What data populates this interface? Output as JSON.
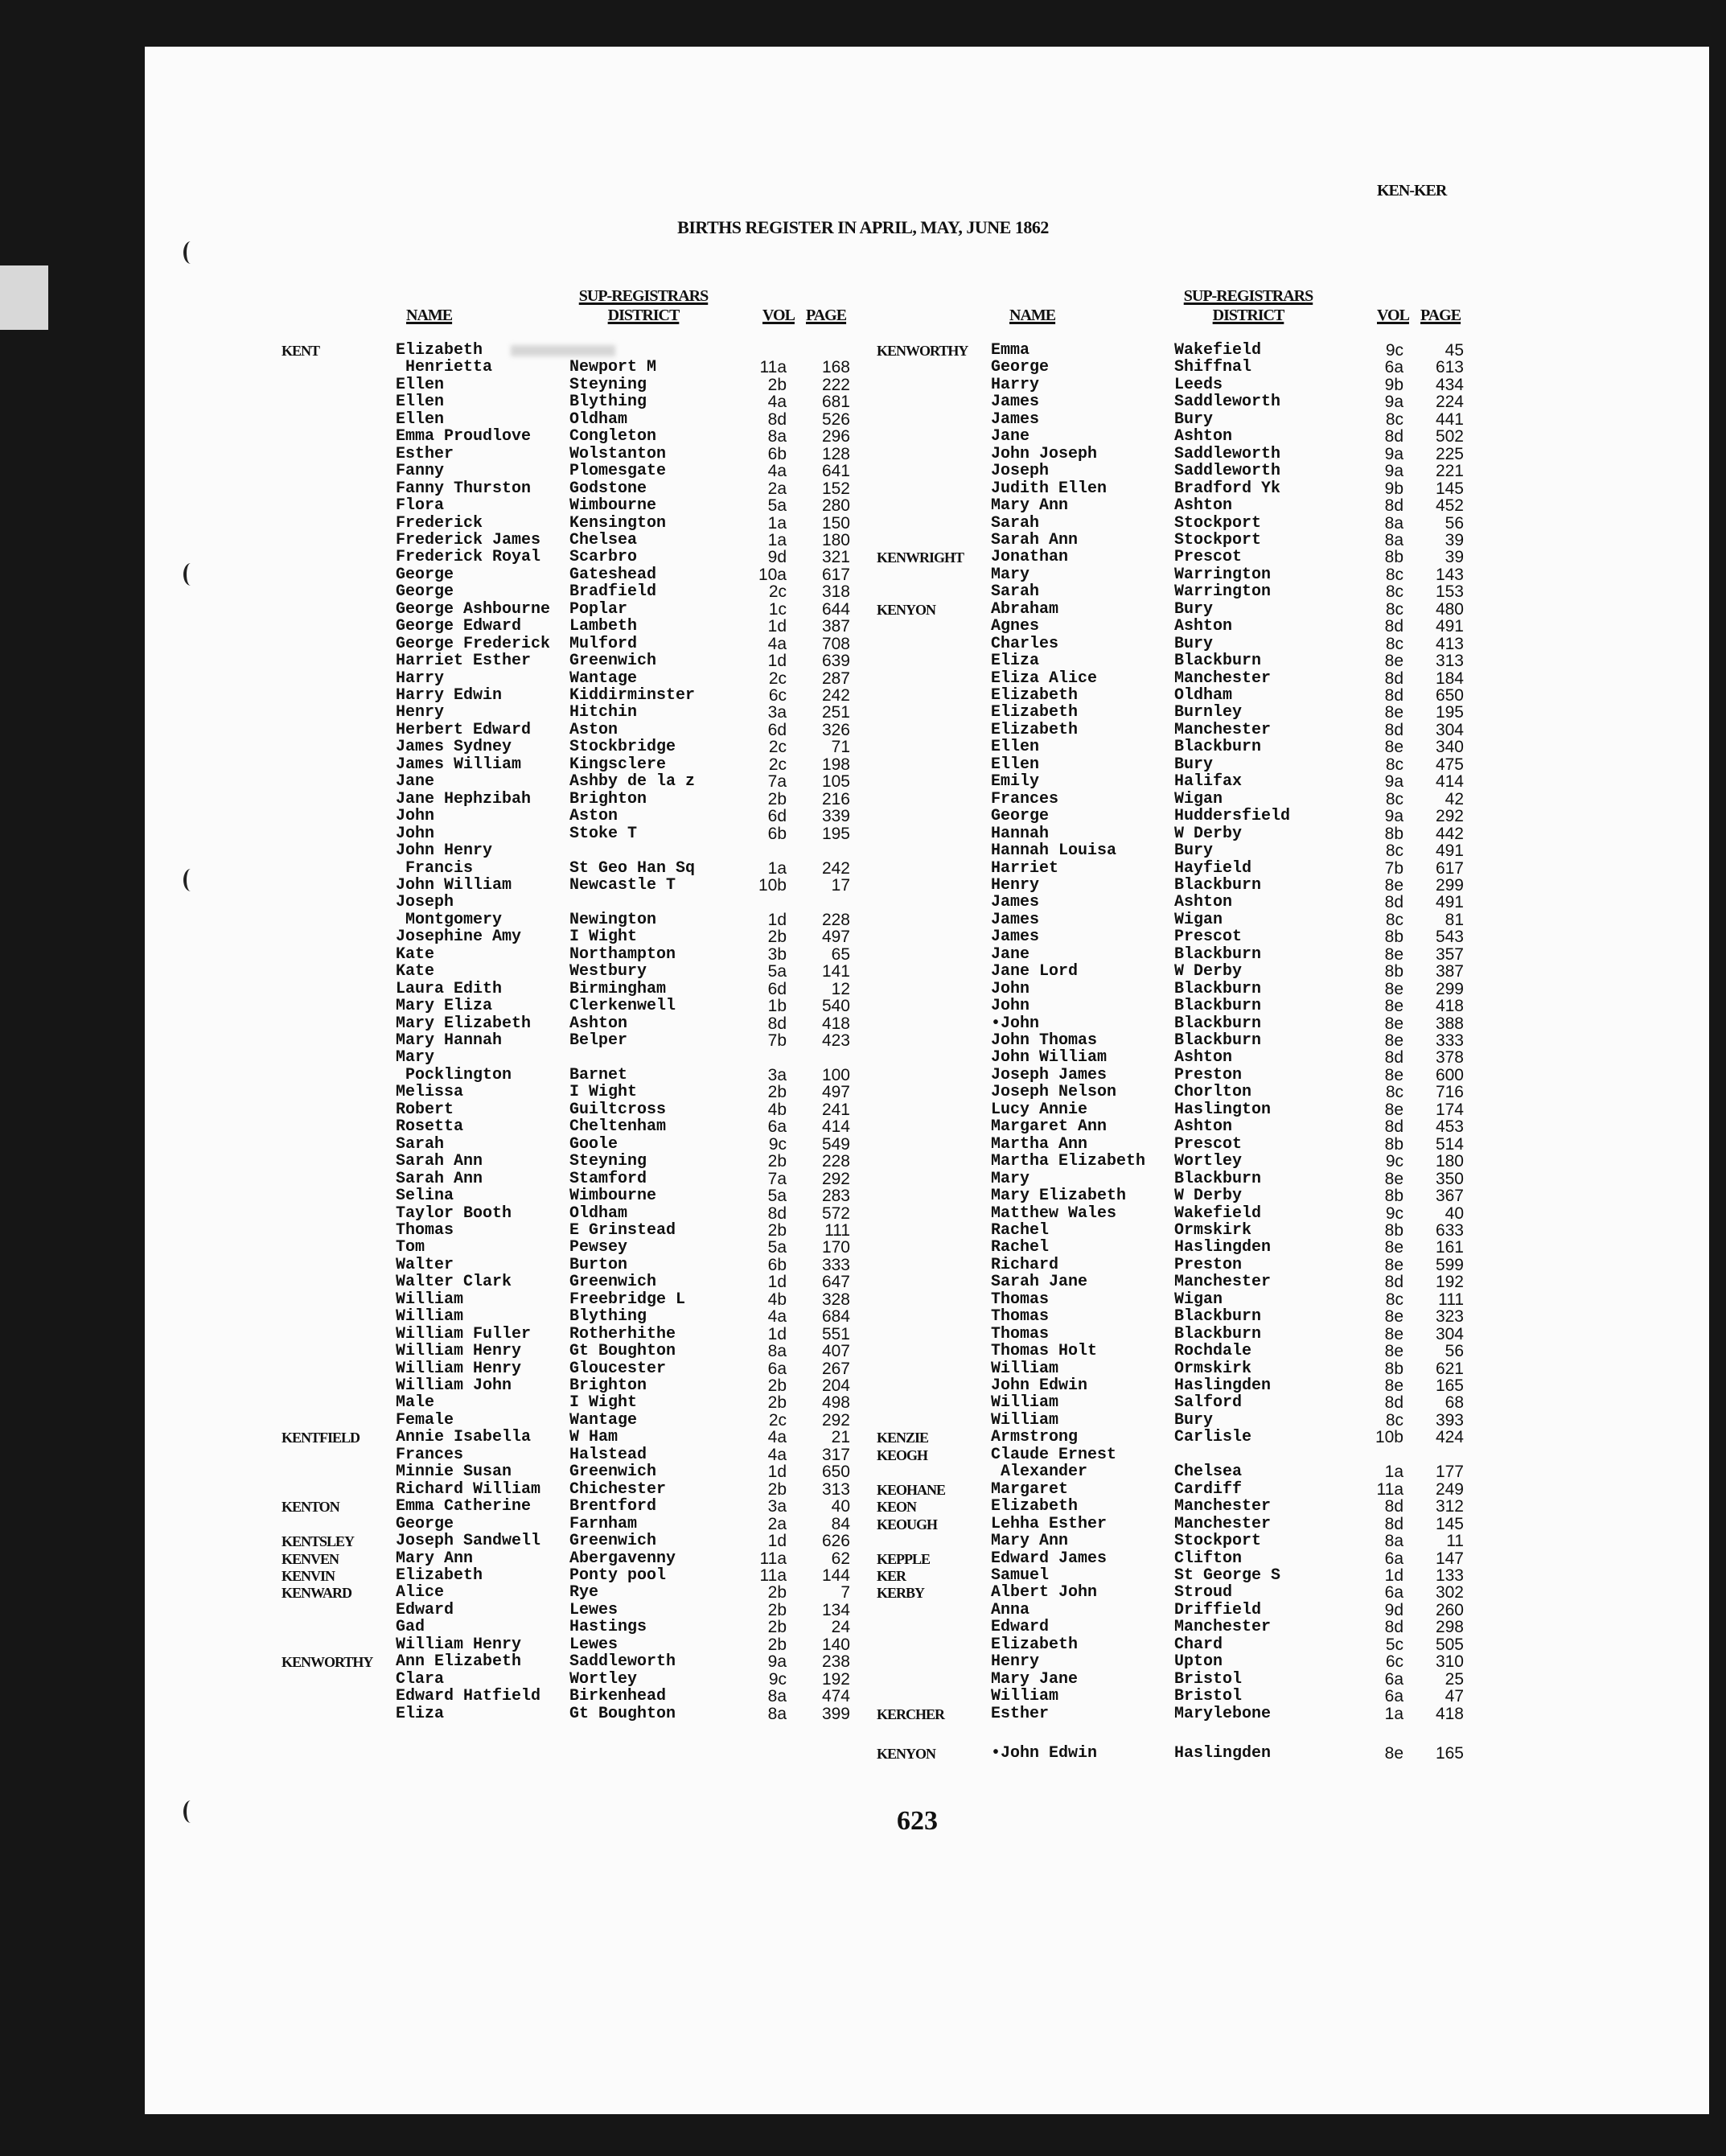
{
  "header": {
    "range": "KEN-KER",
    "title": "BIRTHS REGISTER IN APRIL, MAY, JUNE 1862"
  },
  "columns": {
    "name": "NAME",
    "district_top": "SUP-REGISTRARS",
    "district_bottom": "DISTRICT",
    "vol": "VOL",
    "page": "PAGE"
  },
  "page_number": "623",
  "left_rows": [
    {
      "s": "KENT",
      "n": "Elizabeth",
      "d": "",
      "v": "",
      "p": ""
    },
    {
      "s": "",
      "n": " Henrietta",
      "d": "Newport M",
      "v": "11a",
      "p": "168"
    },
    {
      "s": "",
      "n": "Ellen",
      "d": "Steyning",
      "v": "2b",
      "p": "222"
    },
    {
      "s": "",
      "n": "Ellen",
      "d": "Blything",
      "v": "4a",
      "p": "681"
    },
    {
      "s": "",
      "n": "Ellen",
      "d": "Oldham",
      "v": "8d",
      "p": "526"
    },
    {
      "s": "",
      "n": "Emma Proudlove",
      "d": "Congleton",
      "v": "8a",
      "p": "296"
    },
    {
      "s": "",
      "n": "Esther",
      "d": "Wolstanton",
      "v": "6b",
      "p": "128"
    },
    {
      "s": "",
      "n": "Fanny",
      "d": "Plomesgate",
      "v": "4a",
      "p": "641"
    },
    {
      "s": "",
      "n": "Fanny Thurston",
      "d": "Godstone",
      "v": "2a",
      "p": "152"
    },
    {
      "s": "",
      "n": "Flora",
      "d": "Wimbourne",
      "v": "5a",
      "p": "280"
    },
    {
      "s": "",
      "n": "Frederick",
      "d": "Kensington",
      "v": "1a",
      "p": "150"
    },
    {
      "s": "",
      "n": "Frederick James",
      "d": "Chelsea",
      "v": "1a",
      "p": "180"
    },
    {
      "s": "",
      "n": "Frederick Royal",
      "d": "Scarbro",
      "v": "9d",
      "p": "321"
    },
    {
      "s": "",
      "n": "George",
      "d": "Gateshead",
      "v": "10a",
      "p": "617"
    },
    {
      "s": "",
      "n": "George",
      "d": "Bradfield",
      "v": "2c",
      "p": "318"
    },
    {
      "s": "",
      "n": "George Ashbourne",
      "d": "Poplar",
      "v": "1c",
      "p": "644"
    },
    {
      "s": "",
      "n": "George Edward",
      "d": "Lambeth",
      "v": "1d",
      "p": "387"
    },
    {
      "s": "",
      "n": "George Frederick",
      "d": "Mulford",
      "v": "4a",
      "p": "708"
    },
    {
      "s": "",
      "n": "Harriet Esther",
      "d": "Greenwich",
      "v": "1d",
      "p": "639"
    },
    {
      "s": "",
      "n": "Harry",
      "d": "Wantage",
      "v": "2c",
      "p": "287"
    },
    {
      "s": "",
      "n": "Harry Edwin",
      "d": "Kiddirminster",
      "v": "6c",
      "p": "242"
    },
    {
      "s": "",
      "n": "Henry",
      "d": "Hitchin",
      "v": "3a",
      "p": "251"
    },
    {
      "s": "",
      "n": "Herbert Edward",
      "d": "Aston",
      "v": "6d",
      "p": "326"
    },
    {
      "s": "",
      "n": "James Sydney",
      "d": "Stockbridge",
      "v": "2c",
      "p": "71"
    },
    {
      "s": "",
      "n": "James William",
      "d": "Kingsclere",
      "v": "2c",
      "p": "198"
    },
    {
      "s": "",
      "n": "Jane",
      "d": "Ashby de la z",
      "v": "7a",
      "p": "105"
    },
    {
      "s": "",
      "n": "Jane Hephzibah",
      "d": "Brighton",
      "v": "2b",
      "p": "216"
    },
    {
      "s": "",
      "n": "John",
      "d": "Aston",
      "v": "6d",
      "p": "339"
    },
    {
      "s": "",
      "n": "John",
      "d": "Stoke T",
      "v": "6b",
      "p": "195"
    },
    {
      "s": "",
      "n": "John Henry",
      "d": "",
      "v": "",
      "p": ""
    },
    {
      "s": "",
      "n": " Francis",
      "d": "St Geo Han Sq",
      "v": "1a",
      "p": "242"
    },
    {
      "s": "",
      "n": "John William",
      "d": "Newcastle T",
      "v": "10b",
      "p": "17"
    },
    {
      "s": "",
      "n": "Joseph",
      "d": "",
      "v": "",
      "p": ""
    },
    {
      "s": "",
      "n": " Montgomery",
      "d": "Newington",
      "v": "1d",
      "p": "228"
    },
    {
      "s": "",
      "n": "Josephine Amy",
      "d": "I Wight",
      "v": "2b",
      "p": "497"
    },
    {
      "s": "",
      "n": "Kate",
      "d": "Northampton",
      "v": "3b",
      "p": "65"
    },
    {
      "s": "",
      "n": "Kate",
      "d": "Westbury",
      "v": "5a",
      "p": "141"
    },
    {
      "s": "",
      "n": "Laura Edith",
      "d": "Birmingham",
      "v": "6d",
      "p": "12"
    },
    {
      "s": "",
      "n": "Mary Eliza",
      "d": "Clerkenwell",
      "v": "1b",
      "p": "540"
    },
    {
      "s": "",
      "n": "Mary Elizabeth",
      "d": "Ashton",
      "v": "8d",
      "p": "418"
    },
    {
      "s": "",
      "n": "Mary Hannah",
      "d": "Belper",
      "v": "7b",
      "p": "423"
    },
    {
      "s": "",
      "n": "Mary",
      "d": "",
      "v": "",
      "p": ""
    },
    {
      "s": "",
      "n": " Pocklington",
      "d": "Barnet",
      "v": "3a",
      "p": "100"
    },
    {
      "s": "",
      "n": "Melissa",
      "d": "I Wight",
      "v": "2b",
      "p": "497"
    },
    {
      "s": "",
      "n": "Robert",
      "d": "Guiltcross",
      "v": "4b",
      "p": "241"
    },
    {
      "s": "",
      "n": "Rosetta",
      "d": "Cheltenham",
      "v": "6a",
      "p": "414"
    },
    {
      "s": "",
      "n": "Sarah",
      "d": "Goole",
      "v": "9c",
      "p": "549"
    },
    {
      "s": "",
      "n": "Sarah Ann",
      "d": "Steyning",
      "v": "2b",
      "p": "228"
    },
    {
      "s": "",
      "n": "Sarah Ann",
      "d": "Stamford",
      "v": "7a",
      "p": "292"
    },
    {
      "s": "",
      "n": "Selina",
      "d": "Wimbourne",
      "v": "5a",
      "p": "283"
    },
    {
      "s": "",
      "n": "Taylor Booth",
      "d": "Oldham",
      "v": "8d",
      "p": "572"
    },
    {
      "s": "",
      "n": "Thomas",
      "d": "E Grinstead",
      "v": "2b",
      "p": "111"
    },
    {
      "s": "",
      "n": "Tom",
      "d": "Pewsey",
      "v": "5a",
      "p": "170"
    },
    {
      "s": "",
      "n": "Walter",
      "d": "Burton",
      "v": "6b",
      "p": "333"
    },
    {
      "s": "",
      "n": "Walter Clark",
      "d": "Greenwich",
      "v": "1d",
      "p": "647"
    },
    {
      "s": "",
      "n": "William",
      "d": "Freebridge L",
      "v": "4b",
      "p": "328"
    },
    {
      "s": "",
      "n": "William",
      "d": "Blything",
      "v": "4a",
      "p": "684"
    },
    {
      "s": "",
      "n": "William Fuller",
      "d": "Rotherhithe",
      "v": "1d",
      "p": "551"
    },
    {
      "s": "",
      "n": "William Henry",
      "d": "Gt Boughton",
      "v": "8a",
      "p": "407"
    },
    {
      "s": "",
      "n": "William Henry",
      "d": "Gloucester",
      "v": "6a",
      "p": "267"
    },
    {
      "s": "",
      "n": "William John",
      "d": "Brighton",
      "v": "2b",
      "p": "204"
    },
    {
      "s": "",
      "n": "Male",
      "d": "I Wight",
      "v": "2b",
      "p": "498"
    },
    {
      "s": "",
      "n": "Female",
      "d": "Wantage",
      "v": "2c",
      "p": "292"
    },
    {
      "s": "KENTFIELD",
      "n": "Annie Isabella",
      "d": "W Ham",
      "v": "4a",
      "p": "21"
    },
    {
      "s": "",
      "n": "Frances",
      "d": "Halstead",
      "v": "4a",
      "p": "317"
    },
    {
      "s": "",
      "n": "Minnie Susan",
      "d": "Greenwich",
      "v": "1d",
      "p": "650"
    },
    {
      "s": "",
      "n": "Richard William",
      "d": "Chichester",
      "v": "2b",
      "p": "313"
    },
    {
      "s": "KENTON",
      "n": "Emma Catherine",
      "d": "Brentford",
      "v": "3a",
      "p": "40"
    },
    {
      "s": "",
      "n": "George",
      "d": "Farnham",
      "v": "2a",
      "p": "84"
    },
    {
      "s": "KENTSLEY",
      "n": "Joseph Sandwell",
      "d": "Greenwich",
      "v": "1d",
      "p": "626"
    },
    {
      "s": "KENVEN",
      "n": "Mary Ann",
      "d": "Abergavenny",
      "v": "11a",
      "p": "62"
    },
    {
      "s": "KENVIN",
      "n": "Elizabeth",
      "d": "Ponty pool",
      "v": "11a",
      "p": "144"
    },
    {
      "s": "KENWARD",
      "n": "Alice",
      "d": "Rye",
      "v": "2b",
      "p": "7"
    },
    {
      "s": "",
      "n": "Edward",
      "d": "Lewes",
      "v": "2b",
      "p": "134"
    },
    {
      "s": "",
      "n": "Gad",
      "d": "Hastings",
      "v": "2b",
      "p": "24"
    },
    {
      "s": "",
      "n": "William Henry",
      "d": "Lewes",
      "v": "2b",
      "p": "140"
    },
    {
      "s": "KENWORTHY",
      "n": "Ann Elizabeth",
      "d": "Saddleworth",
      "v": "9a",
      "p": "238"
    },
    {
      "s": "",
      "n": "Clara",
      "d": "Wortley",
      "v": "9c",
      "p": "192"
    },
    {
      "s": "",
      "n": "Edward Hatfield",
      "d": "Birkenhead",
      "v": "8a",
      "p": "474"
    },
    {
      "s": "",
      "n": "Eliza",
      "d": "Gt Boughton",
      "v": "8a",
      "p": "399"
    }
  ],
  "right_rows": [
    {
      "s": "KENWORTHY",
      "n": "Emma",
      "d": "Wakefield",
      "v": "9c",
      "p": "45"
    },
    {
      "s": "",
      "n": "George",
      "d": "Shiffnal",
      "v": "6a",
      "p": "613"
    },
    {
      "s": "",
      "n": "Harry",
      "d": "Leeds",
      "v": "9b",
      "p": "434"
    },
    {
      "s": "",
      "n": "James",
      "d": "Saddleworth",
      "v": "9a",
      "p": "224"
    },
    {
      "s": "",
      "n": "James",
      "d": "Bury",
      "v": "8c",
      "p": "441"
    },
    {
      "s": "",
      "n": "Jane",
      "d": "Ashton",
      "v": "8d",
      "p": "502"
    },
    {
      "s": "",
      "n": "John Joseph",
      "d": "Saddleworth",
      "v": "9a",
      "p": "225"
    },
    {
      "s": "",
      "n": "Joseph",
      "d": "Saddleworth",
      "v": "9a",
      "p": "221"
    },
    {
      "s": "",
      "n": "Judith Ellen",
      "d": "Bradford Yk",
      "v": "9b",
      "p": "145"
    },
    {
      "s": "",
      "n": "Mary Ann",
      "d": "Ashton",
      "v": "8d",
      "p": "452"
    },
    {
      "s": "",
      "n": "Sarah",
      "d": "Stockport",
      "v": "8a",
      "p": "56"
    },
    {
      "s": "",
      "n": "Sarah Ann",
      "d": "Stockport",
      "v": "8a",
      "p": "39"
    },
    {
      "s": "KENWRIGHT",
      "n": "Jonathan",
      "d": "Prescot",
      "v": "8b",
      "p": "39"
    },
    {
      "s": "",
      "n": "Mary",
      "d": "Warrington",
      "v": "8c",
      "p": "143"
    },
    {
      "s": "",
      "n": "Sarah",
      "d": "Warrington",
      "v": "8c",
      "p": "153"
    },
    {
      "s": "KENYON",
      "n": "Abraham",
      "d": "Bury",
      "v": "8c",
      "p": "480"
    },
    {
      "s": "",
      "n": "Agnes",
      "d": "Ashton",
      "v": "8d",
      "p": "491"
    },
    {
      "s": "",
      "n": "Charles",
      "d": "Bury",
      "v": "8c",
      "p": "413"
    },
    {
      "s": "",
      "n": "Eliza",
      "d": "Blackburn",
      "v": "8e",
      "p": "313"
    },
    {
      "s": "",
      "n": "Eliza Alice",
      "d": "Manchester",
      "v": "8d",
      "p": "184"
    },
    {
      "s": "",
      "n": "Elizabeth",
      "d": "Oldham",
      "v": "8d",
      "p": "650"
    },
    {
      "s": "",
      "n": "Elizabeth",
      "d": "Burnley",
      "v": "8e",
      "p": "195"
    },
    {
      "s": "",
      "n": "Elizabeth",
      "d": "Manchester",
      "v": "8d",
      "p": "304"
    },
    {
      "s": "",
      "n": "Ellen",
      "d": "Blackburn",
      "v": "8e",
      "p": "340"
    },
    {
      "s": "",
      "n": "Ellen",
      "d": "Bury",
      "v": "8c",
      "p": "475"
    },
    {
      "s": "",
      "n": "Emily",
      "d": "Halifax",
      "v": "9a",
      "p": "414"
    },
    {
      "s": "",
      "n": "Frances",
      "d": "Wigan",
      "v": "8c",
      "p": "42"
    },
    {
      "s": "",
      "n": "George",
      "d": "Huddersfield",
      "v": "9a",
      "p": "292"
    },
    {
      "s": "",
      "n": "Hannah",
      "d": "W Derby",
      "v": "8b",
      "p": "442"
    },
    {
      "s": "",
      "n": "Hannah Louisa",
      "d": "Bury",
      "v": "8c",
      "p": "491"
    },
    {
      "s": "",
      "n": "Harriet",
      "d": "Hayfield",
      "v": "7b",
      "p": "617"
    },
    {
      "s": "",
      "n": "Henry",
      "d": "Blackburn",
      "v": "8e",
      "p": "299"
    },
    {
      "s": "",
      "n": "James",
      "d": "Ashton",
      "v": "8d",
      "p": "491"
    },
    {
      "s": "",
      "n": "James",
      "d": "Wigan",
      "v": "8c",
      "p": "81"
    },
    {
      "s": "",
      "n": "James",
      "d": "Prescot",
      "v": "8b",
      "p": "543"
    },
    {
      "s": "",
      "n": "Jane",
      "d": "Blackburn",
      "v": "8e",
      "p": "357"
    },
    {
      "s": "",
      "n": "Jane Lord",
      "d": "W Derby",
      "v": "8b",
      "p": "387"
    },
    {
      "s": "",
      "n": "John",
      "d": "Blackburn",
      "v": "8e",
      "p": "299"
    },
    {
      "s": "",
      "n": "John",
      "d": "Blackburn",
      "v": "8e",
      "p": "418"
    },
    {
      "s": "",
      "n": "•John",
      "d": "Blackburn",
      "v": "8e",
      "p": "388"
    },
    {
      "s": "",
      "n": "John Thomas",
      "d": "Blackburn",
      "v": "8e",
      "p": "333"
    },
    {
      "s": "",
      "n": "John William",
      "d": "Ashton",
      "v": "8d",
      "p": "378"
    },
    {
      "s": "",
      "n": "Joseph James",
      "d": "Preston",
      "v": "8e",
      "p": "600"
    },
    {
      "s": "",
      "n": "Joseph Nelson",
      "d": "Chorlton",
      "v": "8c",
      "p": "716"
    },
    {
      "s": "",
      "n": "Lucy Annie",
      "d": "Haslington",
      "v": "8e",
      "p": "174"
    },
    {
      "s": "",
      "n": "Margaret Ann",
      "d": "Ashton",
      "v": "8d",
      "p": "453"
    },
    {
      "s": "",
      "n": "Martha Ann",
      "d": "Prescot",
      "v": "8b",
      "p": "514"
    },
    {
      "s": "",
      "n": "Martha Elizabeth",
      "d": "Wortley",
      "v": "9c",
      "p": "180"
    },
    {
      "s": "",
      "n": "Mary",
      "d": "Blackburn",
      "v": "8e",
      "p": "350"
    },
    {
      "s": "",
      "n": "Mary Elizabeth",
      "d": "W Derby",
      "v": "8b",
      "p": "367"
    },
    {
      "s": "",
      "n": "Matthew Wales",
      "d": "Wakefield",
      "v": "9c",
      "p": "40"
    },
    {
      "s": "",
      "n": "Rachel",
      "d": "Ormskirk",
      "v": "8b",
      "p": "633"
    },
    {
      "s": "",
      "n": "Rachel",
      "d": "Haslingden",
      "v": "8e",
      "p": "161"
    },
    {
      "s": "",
      "n": "Richard",
      "d": "Preston",
      "v": "8e",
      "p": "599"
    },
    {
      "s": "",
      "n": "Sarah Jane",
      "d": "Manchester",
      "v": "8d",
      "p": "192"
    },
    {
      "s": "",
      "n": "Thomas",
      "d": "Wigan",
      "v": "8c",
      "p": "111"
    },
    {
      "s": "",
      "n": "Thomas",
      "d": "Blackburn",
      "v": "8e",
      "p": "323"
    },
    {
      "s": "",
      "n": "Thomas",
      "d": "Blackburn",
      "v": "8e",
      "p": "304"
    },
    {
      "s": "",
      "n": "Thomas Holt",
      "d": "Rochdale",
      "v": "8e",
      "p": "56"
    },
    {
      "s": "",
      "n": "William",
      "d": "Ormskirk",
      "v": "8b",
      "p": "621"
    },
    {
      "s": "",
      "n": "John Edwin",
      "d": "Haslingden",
      "v": "8e",
      "p": "165"
    },
    {
      "s": "",
      "n": "William",
      "d": "Salford",
      "v": "8d",
      "p": "68"
    },
    {
      "s": "",
      "n": "William",
      "d": "Bury",
      "v": "8c",
      "p": "393"
    },
    {
      "s": "KENZIE",
      "n": "Armstrong",
      "d": "Carlisle",
      "v": "10b",
      "p": "424"
    },
    {
      "s": "KEOGH",
      "n": "Claude Ernest",
      "d": "",
      "v": "",
      "p": ""
    },
    {
      "s": "",
      "n": " Alexander",
      "d": "Chelsea",
      "v": "1a",
      "p": "177"
    },
    {
      "s": "KEOHANE",
      "n": "Margaret",
      "d": "Cardiff",
      "v": "11a",
      "p": "249"
    },
    {
      "s": "KEON",
      "n": "Elizabeth",
      "d": "Manchester",
      "v": "8d",
      "p": "312"
    },
    {
      "s": "KEOUGH",
      "n": "Lehha Esther",
      "d": "Manchester",
      "v": "8d",
      "p": "145"
    },
    {
      "s": "",
      "n": "Mary Ann",
      "d": "Stockport",
      "v": "8a",
      "p": "11"
    },
    {
      "s": "KEPPLE",
      "n": "Edward James",
      "d": "Clifton",
      "v": "6a",
      "p": "147"
    },
    {
      "s": "KER",
      "n": "Samuel",
      "d": "St George S",
      "v": "1d",
      "p": "133"
    },
    {
      "s": "KERBY",
      "n": "Albert John",
      "d": "Stroud",
      "v": "6a",
      "p": "302"
    },
    {
      "s": "",
      "n": "Anna",
      "d": "Driffield",
      "v": "9d",
      "p": "260"
    },
    {
      "s": "",
      "n": "Edward",
      "d": "Manchester",
      "v": "8d",
      "p": "298"
    },
    {
      "s": "",
      "n": "Elizabeth",
      "d": "Chard",
      "v": "5c",
      "p": "505"
    },
    {
      "s": "",
      "n": "Henry",
      "d": "Upton",
      "v": "6c",
      "p": "310"
    },
    {
      "s": "",
      "n": "Mary Jane",
      "d": "Bristol",
      "v": "6a",
      "p": "25"
    },
    {
      "s": "",
      "n": "William",
      "d": "Bristol",
      "v": "6a",
      "p": "47"
    },
    {
      "s": "KERCHER",
      "n": "Esther",
      "d": "Marylebone",
      "v": "1a",
      "p": "418"
    }
  ],
  "addendum": {
    "s": "KENYON",
    "n": "•John Edwin",
    "d": "Haslingden",
    "v": "8e",
    "p": "165"
  }
}
